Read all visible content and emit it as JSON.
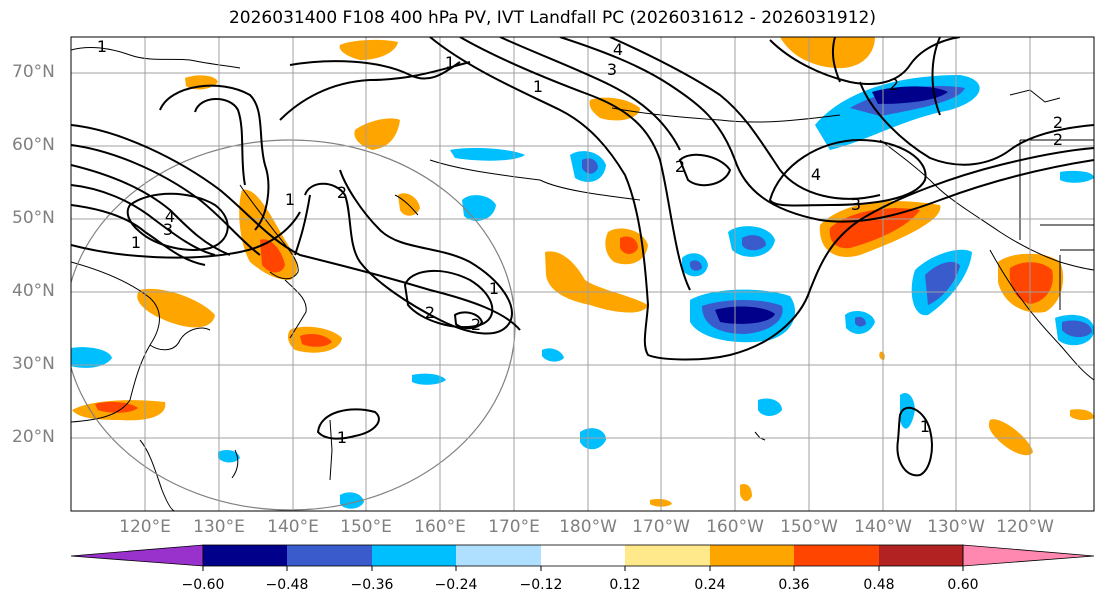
{
  "title": "2026031400 F108 400 hPa PV, IVT Landfall PC (2026031612 - 2026031912)",
  "latitude_labels": [
    "70°N",
    "60°N",
    "50°N",
    "40°N",
    "30°N",
    "20°N"
  ],
  "longitude_labels": [
    "120°E",
    "130°E",
    "140°E",
    "150°E",
    "160°E",
    "170°E",
    "180°W",
    "170°W",
    "160°W",
    "150°W",
    "140°W",
    "130°W",
    "120°W"
  ],
  "contour_labels": [
    "1",
    "1",
    "3",
    "4",
    "2",
    "2",
    "2",
    "3",
    "4",
    "2",
    "2",
    "1",
    "1",
    "1",
    "3",
    "4",
    "2",
    "2",
    "1",
    "1",
    "1"
  ],
  "colorbar": {
    "tick_labels": [
      "−0.60",
      "−0.48",
      "−0.36",
      "−0.24",
      "−0.12",
      "0.12",
      "0.24",
      "0.36",
      "0.48",
      "0.60"
    ],
    "colors": [
      "#9932cc",
      "#00008b",
      "#3a5bcc",
      "#00bfff",
      "#b0e0ff",
      "#ffffff",
      "#ffe98a",
      "#ffa500",
      "#ff4500",
      "#b22222",
      "#ff88b0"
    ],
    "extend": "both"
  },
  "colors": {
    "grid": "#a0a0a0",
    "axis_labels": "#808080",
    "contours": "#000000"
  }
}
